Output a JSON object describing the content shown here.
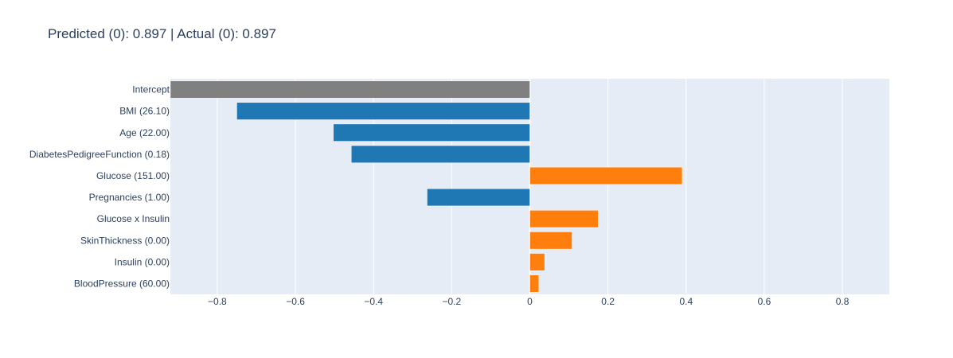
{
  "chart_data": {
    "type": "bar",
    "orientation": "horizontal",
    "title": "Predicted (0): 0.897 | Actual (0): 0.897",
    "xlabel": "",
    "ylabel": "",
    "xlim": [
      -0.92,
      0.92
    ],
    "x_ticks": [
      -0.8,
      -0.6,
      -0.4,
      -0.2,
      0,
      0.2,
      0.4,
      0.6,
      0.8
    ],
    "x_tick_labels": [
      "−0.8",
      "−0.6",
      "−0.4",
      "−0.2",
      "0",
      "0.2",
      "0.4",
      "0.6",
      "0.8"
    ],
    "grid": true,
    "legend": "none",
    "categories": [
      "Intercept",
      "BMI (26.10)",
      "Age (22.00)",
      "DiabetesPedigreeFunction (0.18)",
      "Glucose (151.00)",
      "Pregnancies (1.00)",
      "Glucose x Insulin",
      "SkinThickness (0.00)",
      "Insulin (0.00)",
      "BloodPressure (60.00)"
    ],
    "values": [
      -0.95,
      -0.75,
      -0.503,
      -0.457,
      0.39,
      -0.263,
      0.175,
      0.108,
      0.038,
      0.023
    ],
    "bar_colors": [
      "#808080",
      "#1f77b4",
      "#1f77b4",
      "#1f77b4",
      "#ff7f0e",
      "#1f77b4",
      "#ff7f0e",
      "#ff7f0e",
      "#ff7f0e",
      "#ff7f0e"
    ],
    "colors": {
      "intercept": "#808080",
      "negative": "#1f77b4",
      "positive": "#ff7f0e",
      "plot_background": "#e5ecf6",
      "grid": "#ffffff",
      "text": "#2a3f5f"
    }
  }
}
